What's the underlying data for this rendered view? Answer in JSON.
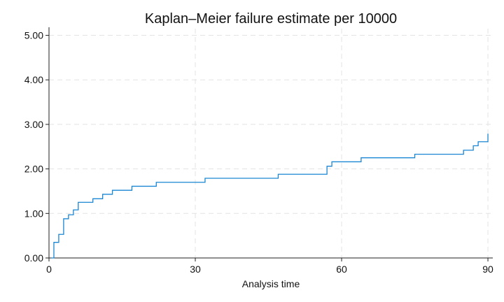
{
  "chart_data": {
    "type": "line",
    "step": true,
    "title": "Kaplan–Meier failure estimate per 10000",
    "xlabel": "Analysis time",
    "ylabel": "",
    "xlim": [
      0,
      91
    ],
    "ylim": [
      0,
      5.15
    ],
    "xticks": [
      0,
      30,
      60,
      90
    ],
    "xtick_labels": [
      "0",
      "30",
      "60",
      "90"
    ],
    "yticks": [
      0,
      1,
      2,
      3,
      4,
      5
    ],
    "ytick_labels": [
      "0.00",
      "1.00",
      "2.00",
      "3.00",
      "4.00",
      "5.00"
    ],
    "grid": true,
    "grid_style": "dashed",
    "line_color": "#1a86d4",
    "series": [
      {
        "x": [
          0.5,
          1,
          2,
          3,
          4,
          5,
          6,
          9,
          11,
          13,
          17,
          22,
          32,
          47,
          57,
          58,
          64,
          75,
          85,
          87,
          88,
          90
        ],
        "y": [
          0,
          0.35,
          0.53,
          0.88,
          0.97,
          1.08,
          1.25,
          1.33,
          1.43,
          1.52,
          1.61,
          1.7,
          1.79,
          1.88,
          2.06,
          2.16,
          2.25,
          2.33,
          2.42,
          2.52,
          2.61,
          2.79
        ]
      }
    ]
  }
}
